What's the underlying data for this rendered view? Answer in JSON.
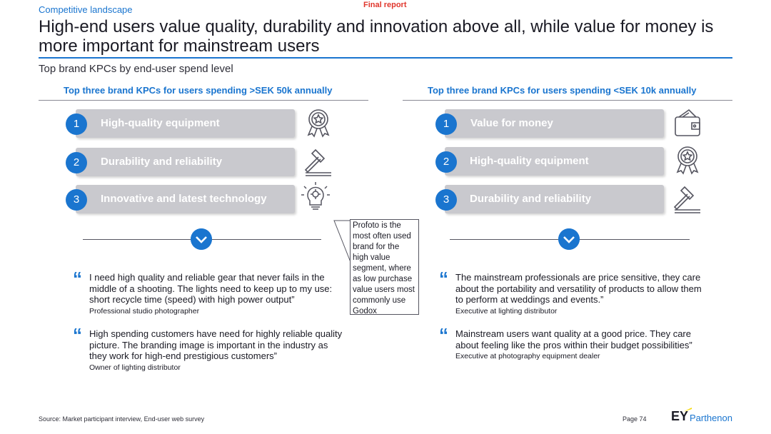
{
  "header": {
    "section": "Competitive landscape",
    "status": "Final report",
    "title": "High-end users value quality, durability and innovation above all, while value for money is more important for mainstream users",
    "subtitle": "Top brand KPCs by end-user spend level"
  },
  "left": {
    "heading": "Top three brand KPCs for users spending >SEK 50k annually",
    "kpcs": [
      {
        "num": "1",
        "label": "High-quality equipment",
        "icon": "award-badge-icon"
      },
      {
        "num": "2",
        "label": "Durability and reliability",
        "icon": "gavel-icon"
      },
      {
        "num": "3",
        "label": "Innovative and latest technology",
        "icon": "lightbulb-gear-icon"
      }
    ],
    "quotes": [
      {
        "text": "I need high quality and reliable gear that never fails in the middle of a shooting. The lights need to keep up to my use: short recycle time (speed) with high power output”",
        "source": "Professional studio photographer"
      },
      {
        "text": "High spending customers have need for highly reliable quality picture. The branding image is important in the industry as they work for high-end prestigious customers”",
        "source": "Owner of lighting distributor"
      }
    ]
  },
  "right": {
    "heading": "Top three brand KPCs for users spending <SEK 10k annually",
    "kpcs": [
      {
        "num": "1",
        "label": "Value for money",
        "icon": "wallet-icon"
      },
      {
        "num": "2",
        "label": "High-quality equipment",
        "icon": "award-badge-icon"
      },
      {
        "num": "3",
        "label": "Durability and reliability",
        "icon": "gavel-icon"
      }
    ],
    "quotes": [
      {
        "text": "The mainstream professionals are price sensitive, they care about the portability and versatility of products to allow them to perform at weddings and events.”",
        "source": "Executive at lighting distributor"
      },
      {
        "text": "Mainstream users want quality at a good price. They care about feeling like the pros within their budget possibilities”",
        "source": "Executive at photography equipment dealer"
      }
    ]
  },
  "callout": "Profoto is the most often used brand for the high value segment, where as low purchase value users most commonly use Godox",
  "footer": {
    "source": "Source: Market participant interview, End-user web survey",
    "page": "Page 74",
    "logo_mark": "EY",
    "logo_name": "Parthenon"
  },
  "colors": {
    "accent": "#1a75cf",
    "status": "#e0362c",
    "bar": "#c9c9ce"
  }
}
